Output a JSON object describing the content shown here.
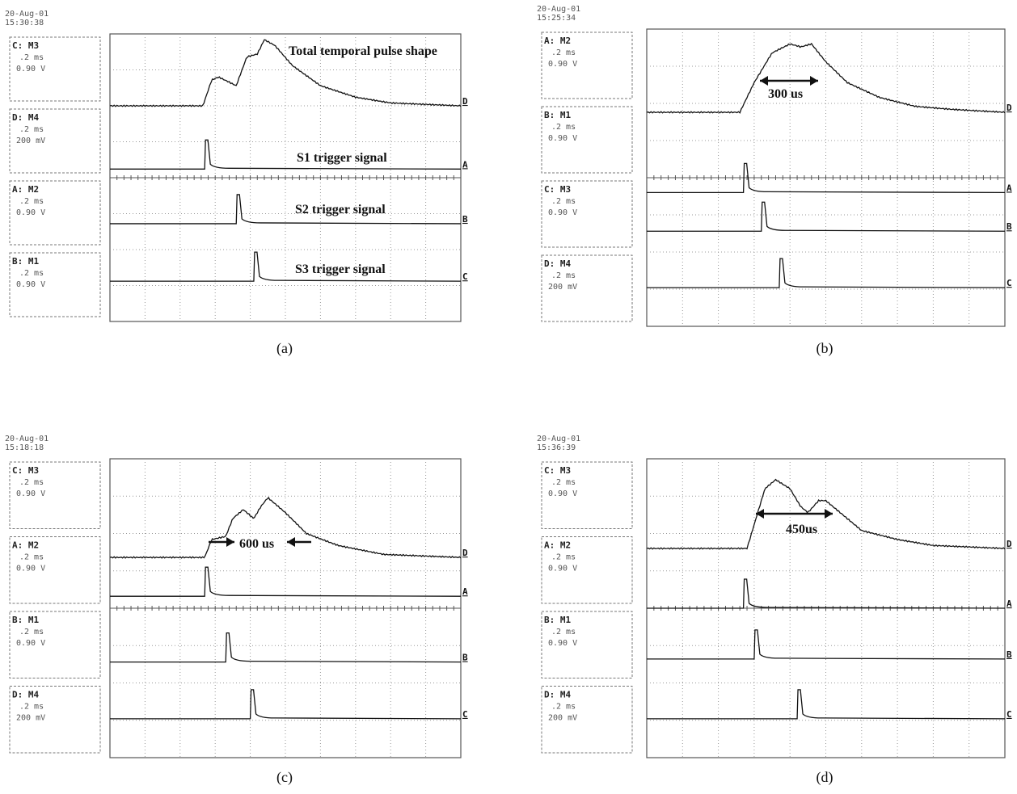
{
  "panels": [
    {
      "label": "(a)",
      "date": "20-Aug-01",
      "time": "15:30:38",
      "channels": [
        {
          "name": "C: M3",
          "scale": ".2 ms",
          "volts": "0.90 V"
        },
        {
          "name": "D: M4",
          "scale": ".2 ms",
          "volts": "200 mV"
        },
        {
          "name": "A: M2",
          "scale": ".2 ms",
          "volts": "0.90 V"
        },
        {
          "name": "B: M1",
          "scale": ".2 ms",
          "volts": "0.90 V"
        }
      ],
      "traces": [
        "D",
        "A",
        "B",
        "C"
      ],
      "annotations": [
        "Total temporal  pulse shape",
        "S1 trigger signal",
        "S2 trigger signal",
        "S3 trigger signal"
      ]
    },
    {
      "label": "(b)",
      "date": "20-Aug-01",
      "time": "15:25:34",
      "channels": [
        {
          "name": "A: M2",
          "scale": ".2 ms",
          "volts": "0.90 V"
        },
        {
          "name": "B: M1",
          "scale": ".2 ms",
          "volts": "0.90 V"
        },
        {
          "name": "C: M3",
          "scale": ".2 ms",
          "volts": "0.90 V"
        },
        {
          "name": "D: M4",
          "scale": ".2 ms",
          "volts": "200 mV"
        }
      ],
      "traces": [
        "D",
        "A",
        "B",
        "C"
      ],
      "annotations": [
        "300 us"
      ]
    },
    {
      "label": "(c)",
      "date": "20-Aug-01",
      "time": "15:18:18",
      "channels": [
        {
          "name": "C: M3",
          "scale": ".2 ms",
          "volts": "0.90 V"
        },
        {
          "name": "A: M2",
          "scale": ".2 ms",
          "volts": "0.90 V"
        },
        {
          "name": "B: M1",
          "scale": ".2 ms",
          "volts": "0.90 V"
        },
        {
          "name": "D: M4",
          "scale": ".2 ms",
          "volts": "200 mV"
        }
      ],
      "traces": [
        "D",
        "A",
        "B",
        "C"
      ],
      "annotations": [
        "600 us"
      ]
    },
    {
      "label": "(d)",
      "date": "20-Aug-01",
      "time": "15:36:39",
      "channels": [
        {
          "name": "C: M3",
          "scale": ".2 ms",
          "volts": "0.90 V"
        },
        {
          "name": "A: M2",
          "scale": ".2 ms",
          "volts": "0.90 V"
        },
        {
          "name": "B: M1",
          "scale": ".2 ms",
          "volts": "0.90 V"
        },
        {
          "name": "D: M4",
          "scale": ".2 ms",
          "volts": "200 mV"
        }
      ],
      "traces": [
        "D",
        "A",
        "B",
        "C"
      ],
      "annotations": [
        "450us"
      ]
    }
  ]
}
